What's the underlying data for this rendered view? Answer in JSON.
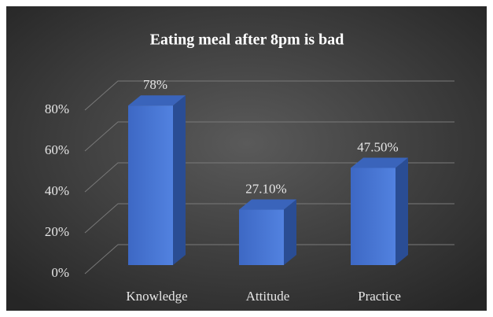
{
  "chart_data": {
    "type": "bar3d",
    "title": "Eating meal after 8pm is bad",
    "categories": [
      "Knowledge",
      "Attitude",
      "Practice"
    ],
    "values": [
      78,
      27.1,
      47.5
    ],
    "value_labels": [
      "78%",
      "27.10%",
      "47.50%"
    ],
    "color": "#4472c4",
    "ylim": [
      0,
      80
    ],
    "yticks": [
      {
        "value": 0,
        "label": "0%"
      },
      {
        "value": 20,
        "label": "20%"
      },
      {
        "value": 40,
        "label": "40%"
      },
      {
        "value": 60,
        "label": "60%"
      },
      {
        "value": 80,
        "label": "80%"
      }
    ],
    "grid": true
  }
}
